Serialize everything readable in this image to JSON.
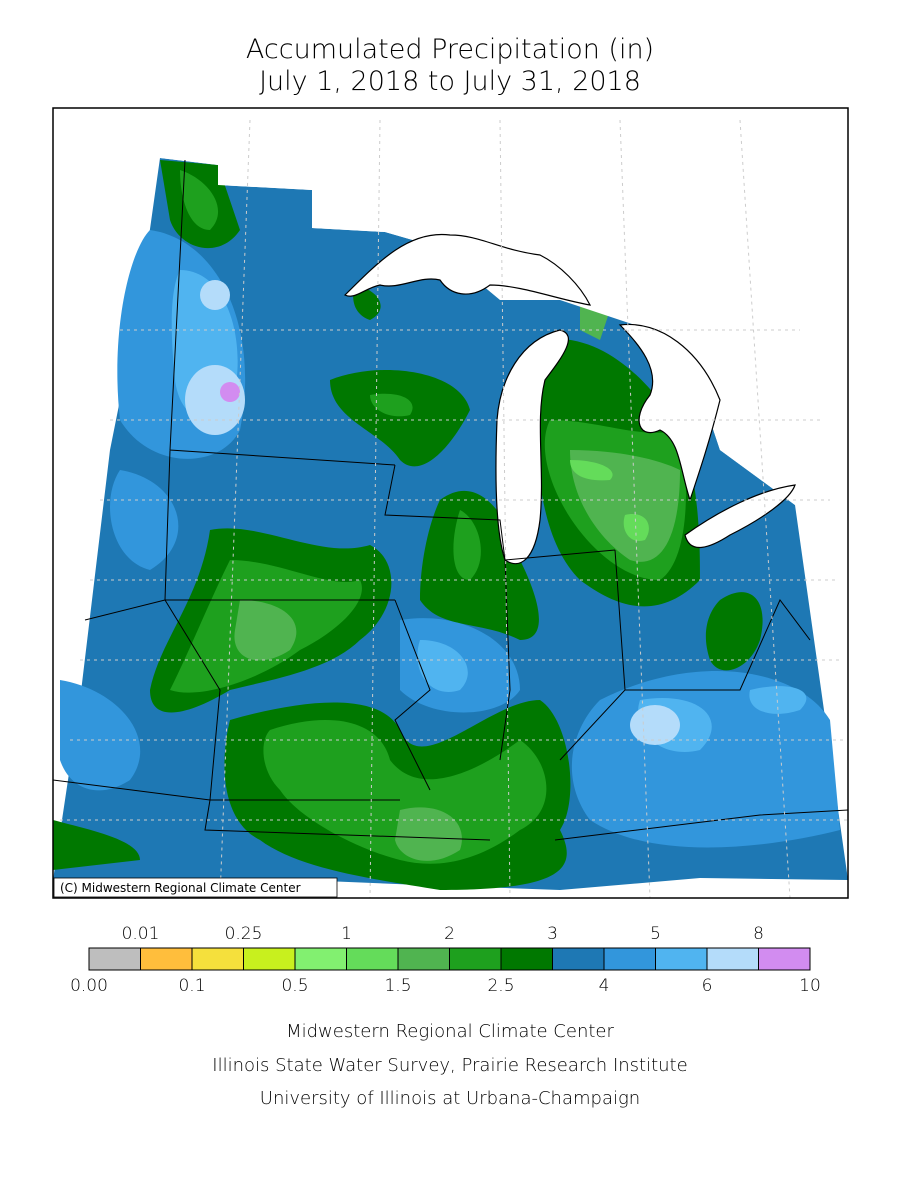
{
  "header": {
    "title": "Accumulated Precipitation (in)",
    "subtitle": "July 1, 2018 to July 31, 2018"
  },
  "map": {
    "credit": "(C) Midwestern Regional Climate Center"
  },
  "legend": {
    "labels": [
      "0.00",
      "0.01",
      "0.1",
      "0.25",
      "0.5",
      "1",
      "1.5",
      "2",
      "2.5",
      "3",
      "4",
      "5",
      "6",
      "8",
      "10"
    ],
    "colors": [
      "#bebebe",
      "#ffbe3c",
      "#f5e03c",
      "#c8f01e",
      "#82f070",
      "#64dc5a",
      "#50b450",
      "#1ea01e",
      "#007800",
      "#1e78b4",
      "#3296dc",
      "#50b4f0",
      "#b4dcfa",
      "#d28cf0"
    ]
  },
  "footer": {
    "lines": [
      "Midwestern Regional Climate Center",
      "Illinois State Water Survey, Prairie Research Institute",
      "University of Illinois at Urbana-Champaign"
    ]
  }
}
